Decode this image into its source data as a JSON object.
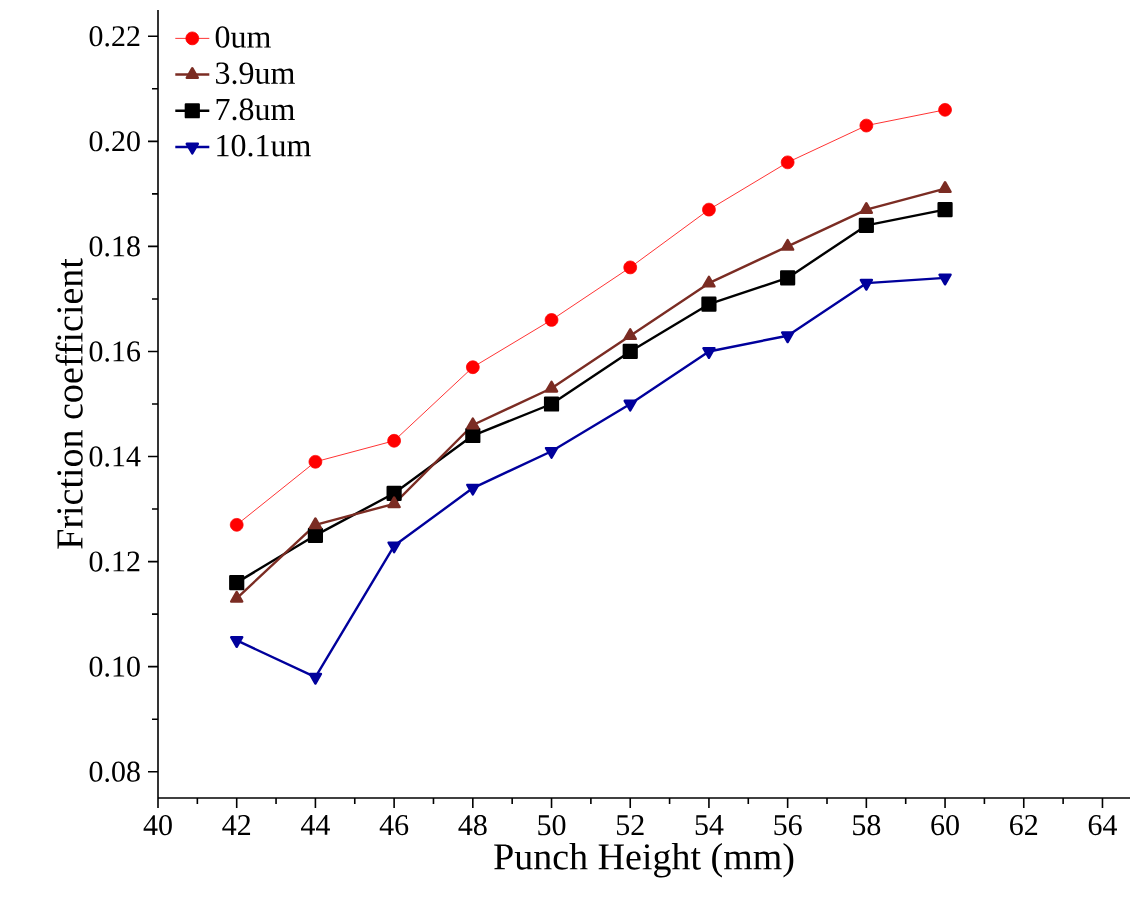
{
  "chart_data": {
    "type": "line",
    "xlabel": "Punch Height (mm)",
    "ylabel": "Friction coefficient",
    "x": [
      42,
      44,
      46,
      48,
      50,
      52,
      54,
      56,
      58,
      60
    ],
    "series": [
      {
        "name": "0um",
        "color": "#ff0000",
        "marker": "circle",
        "values": [
          0.127,
          0.139,
          0.143,
          0.157,
          0.166,
          0.176,
          0.187,
          0.196,
          0.203,
          0.206
        ]
      },
      {
        "name": "3.9um",
        "color": "#7b2c23",
        "marker": "triangle",
        "values": [
          0.113,
          0.127,
          0.131,
          0.146,
          0.153,
          0.163,
          0.173,
          0.18,
          0.187,
          0.191
        ]
      },
      {
        "name": "7.8um",
        "color": "#000000",
        "marker": "square",
        "values": [
          0.116,
          0.125,
          0.133,
          0.144,
          0.15,
          0.16,
          0.169,
          0.174,
          0.184,
          0.187
        ]
      },
      {
        "name": "10.1um",
        "color": "#00009c",
        "marker": "triangle down",
        "values": [
          0.105,
          0.098,
          0.123,
          0.134,
          0.141,
          0.15,
          0.16,
          0.163,
          0.173,
          0.174
        ]
      }
    ],
    "xlim": [
      40,
      64.7
    ],
    "ylim": [
      0.075,
      0.225
    ],
    "xticks": [
      40,
      42,
      44,
      46,
      48,
      50,
      52,
      54,
      56,
      58,
      60,
      62,
      64
    ],
    "yticks": [
      {
        "value": 0.08,
        "label": "0.08"
      },
      {
        "value": 0.1,
        "label": "0.10"
      },
      {
        "value": 0.12,
        "label": "0.12"
      },
      {
        "value": 0.14,
        "label": "0.14"
      },
      {
        "value": 0.16,
        "label": "0.16"
      },
      {
        "value": 0.18,
        "label": "0.18"
      },
      {
        "value": 0.2,
        "label": "0.20"
      },
      {
        "value": 0.22,
        "label": "0.22"
      }
    ],
    "legend": "top left",
    "grid": false,
    "line_style": "solid"
  }
}
